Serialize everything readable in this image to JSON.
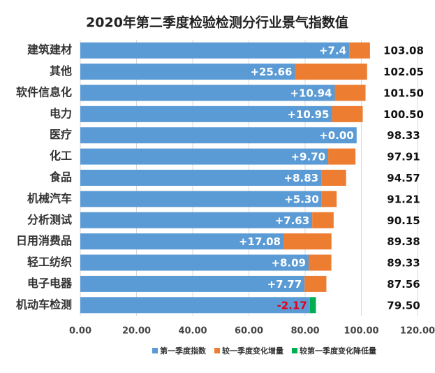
{
  "chart_data": {
    "type": "stacked-bar-horizontal",
    "title": "2020年第二季度检验检测分行业景气指数值",
    "categories": [
      "建筑建材",
      "其他",
      "软件信息化",
      "电力",
      "医疗",
      "化工",
      "食品",
      "机械汽车",
      "分析测试",
      "日用消费品",
      "轻工纺织",
      "电子电器",
      "机动车检测"
    ],
    "series": [
      {
        "name": "第一季度指数",
        "color": "#5b9bd5",
        "values": [
          95.68,
          76.39,
          90.56,
          89.55,
          98.33,
          88.21,
          85.74,
          85.91,
          82.52,
          72.3,
          81.24,
          79.79,
          81.67
        ]
      },
      {
        "name": "较一季度变化增量",
        "color": "#ed7d31",
        "values": [
          7.4,
          25.66,
          10.94,
          10.95,
          0,
          9.7,
          8.83,
          5.3,
          7.63,
          17.08,
          8.09,
          7.77,
          null
        ],
        "value_labels": [
          "+7.4",
          "+25.66",
          "+10.94",
          "+10.95",
          "+0.00",
          "+9.70",
          "+8.83",
          "+5.30",
          "+7.63",
          "+17.08",
          "+8.09",
          "+7.77",
          null
        ]
      },
      {
        "name": "较第一季度变化降低量",
        "color": "#00b050",
        "values": [
          null,
          null,
          null,
          null,
          null,
          null,
          null,
          null,
          null,
          null,
          null,
          null,
          -2.17
        ],
        "value_labels": [
          null,
          null,
          null,
          null,
          null,
          null,
          null,
          null,
          null,
          null,
          null,
          null,
          "-2.17"
        ],
        "label_color": "#e3001b"
      }
    ],
    "total_labels": [
      "103.08",
      "102.05",
      "101.50",
      "100.50",
      "98.33",
      "97.91",
      "94.57",
      "91.21",
      "90.15",
      "89.38",
      "89.33",
      "87.56",
      "79.50"
    ],
    "xlim": [
      0,
      120
    ],
    "xticks": [
      {
        "value": 0,
        "label": "0.00"
      },
      {
        "value": 20,
        "label": "20.00"
      },
      {
        "value": 40,
        "label": "40.00"
      },
      {
        "value": 60,
        "label": "60.00"
      },
      {
        "value": 80,
        "label": "80.00"
      },
      {
        "value": 100,
        "label": "100.00"
      },
      {
        "value": 120,
        "label": "120.00"
      }
    ],
    "grid": true
  }
}
